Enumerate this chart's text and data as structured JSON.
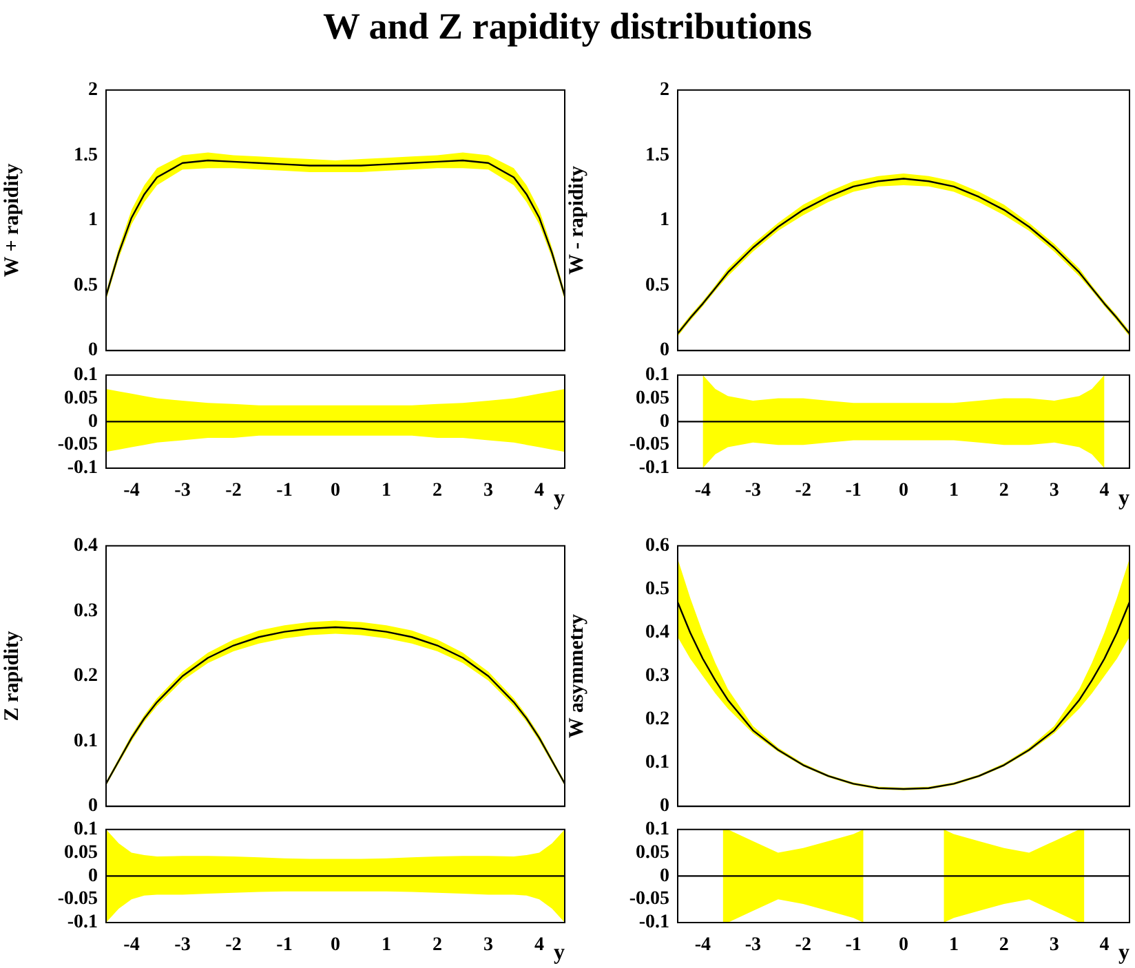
{
  "chart_data": [
    {
      "type": "line",
      "title": "W and Z rapidity distributions",
      "ylabel": "W + rapidity",
      "xlim": [
        -4.5,
        4.5
      ],
      "xticks": [
        -4,
        -3,
        -2,
        -1,
        0,
        1,
        2,
        3,
        4
      ],
      "ylim": [
        0,
        2
      ],
      "yticks": [
        0,
        0.5,
        1,
        1.5,
        2
      ],
      "tick_labels": "y",
      "x": [
        -4.5,
        -4.25,
        -4,
        -3.75,
        -3.5,
        -3,
        -2.5,
        -2,
        -1.5,
        -1,
        -0.5,
        0,
        0.5,
        1,
        1.5,
        2,
        2.5,
        3,
        3.5,
        3.75,
        4,
        4.25,
        4.5
      ],
      "series": [
        {
          "color": "#000000",
          "values": [
            0.42,
            0.75,
            1.02,
            1.2,
            1.33,
            1.44,
            1.46,
            1.45,
            1.44,
            1.43,
            1.42,
            1.42,
            1.42,
            1.43,
            1.44,
            1.45,
            1.46,
            1.44,
            1.33,
            1.2,
            1.02,
            0.75,
            0.42
          ],
          "lower": [
            0.39,
            0.71,
            0.97,
            1.14,
            1.27,
            1.39,
            1.4,
            1.4,
            1.39,
            1.38,
            1.37,
            1.37,
            1.37,
            1.38,
            1.39,
            1.4,
            1.4,
            1.39,
            1.27,
            1.14,
            0.97,
            0.71,
            0.39
          ],
          "upper": [
            0.45,
            0.79,
            1.08,
            1.27,
            1.4,
            1.5,
            1.52,
            1.5,
            1.49,
            1.48,
            1.47,
            1.46,
            1.47,
            1.48,
            1.49,
            1.5,
            1.52,
            1.5,
            1.4,
            1.27,
            1.08,
            0.79,
            0.45
          ]
        }
      ]
    },
    {
      "type": "line",
      "xlabel": "y",
      "xlim": [
        -4.5,
        4.5
      ],
      "xticks": [
        -4,
        -3,
        -2,
        -1,
        0,
        1,
        2,
        3,
        4
      ],
      "ylim": [
        -0.1,
        0.1
      ],
      "yticks": [
        -0.1,
        -0.05,
        0,
        0.05,
        0.1
      ],
      "x": [
        -4.5,
        -4.25,
        -4,
        -3.75,
        -3.5,
        -3,
        -2.5,
        -2,
        -1.5,
        -1,
        -0.5,
        0,
        0.5,
        1,
        1.5,
        2,
        2.5,
        3,
        3.5,
        3.75,
        4,
        4.25,
        4.5
      ],
      "series": [
        {
          "color": "#000000",
          "values": [
            0,
            0,
            0,
            0,
            0,
            0,
            0,
            0,
            0,
            0,
            0,
            0,
            0,
            0,
            0,
            0,
            0,
            0,
            0,
            0,
            0,
            0,
            0
          ],
          "lower": [
            -0.065,
            -0.06,
            -0.055,
            -0.05,
            -0.045,
            -0.04,
            -0.035,
            -0.035,
            -0.03,
            -0.03,
            -0.03,
            -0.03,
            -0.03,
            -0.03,
            -0.03,
            -0.035,
            -0.035,
            -0.04,
            -0.045,
            -0.05,
            -0.055,
            -0.06,
            -0.065
          ],
          "upper": [
            0.07,
            0.065,
            0.06,
            0.055,
            0.05,
            0.045,
            0.04,
            0.038,
            0.035,
            0.035,
            0.035,
            0.035,
            0.035,
            0.035,
            0.035,
            0.038,
            0.04,
            0.045,
            0.05,
            0.055,
            0.06,
            0.065,
            0.07
          ]
        }
      ]
    },
    {
      "type": "line",
      "ylabel": "W - rapidity",
      "xlim": [
        -4.5,
        4.5
      ],
      "xticks": [
        -4,
        -3,
        -2,
        -1,
        0,
        1,
        2,
        3,
        4
      ],
      "ylim": [
        0,
        2
      ],
      "yticks": [
        0,
        0.5,
        1,
        1.5,
        2
      ],
      "tick_labels": "y",
      "x": [
        -4.5,
        -4.25,
        -4,
        -3.75,
        -3.5,
        -3,
        -2.5,
        -2,
        -1.5,
        -1,
        -0.5,
        0,
        0.5,
        1,
        1.5,
        2,
        2.5,
        3,
        3.5,
        3.75,
        4,
        4.25,
        4.5
      ],
      "series": [
        {
          "color": "#000000",
          "values": [
            0.13,
            0.25,
            0.36,
            0.48,
            0.6,
            0.79,
            0.95,
            1.08,
            1.18,
            1.26,
            1.3,
            1.32,
            1.3,
            1.26,
            1.18,
            1.08,
            0.95,
            0.79,
            0.6,
            0.48,
            0.36,
            0.25,
            0.13
          ],
          "lower": [
            0.11,
            0.23,
            0.34,
            0.46,
            0.57,
            0.76,
            0.92,
            1.04,
            1.14,
            1.22,
            1.26,
            1.27,
            1.26,
            1.22,
            1.14,
            1.04,
            0.92,
            0.76,
            0.57,
            0.46,
            0.34,
            0.23,
            0.11
          ],
          "upper": [
            0.15,
            0.27,
            0.38,
            0.5,
            0.63,
            0.82,
            0.98,
            1.12,
            1.22,
            1.3,
            1.34,
            1.36,
            1.34,
            1.3,
            1.22,
            1.12,
            0.98,
            0.82,
            0.63,
            0.5,
            0.38,
            0.27,
            0.15
          ]
        }
      ]
    },
    {
      "type": "line",
      "xlabel": "y",
      "xlim": [
        -4.5,
        4.5
      ],
      "xticks": [
        -4,
        -3,
        -2,
        -1,
        0,
        1,
        2,
        3,
        4
      ],
      "ylim": [
        -0.1,
        0.1
      ],
      "yticks": [
        -0.1,
        -0.05,
        0,
        0.05,
        0.1
      ],
      "x": [
        -4.5,
        -4.25,
        -4,
        -3.75,
        -3.5,
        -3,
        -2.5,
        -2,
        -1.5,
        -1,
        -0.5,
        0,
        0.5,
        1,
        1.5,
        2,
        2.5,
        3,
        3.5,
        3.75,
        4,
        4.25,
        4.5
      ],
      "series": [
        {
          "color": "#000000",
          "values": [
            0,
            0,
            0,
            0,
            0,
            0,
            0,
            0,
            0,
            0,
            0,
            0,
            0,
            0,
            0,
            0,
            0,
            0,
            0,
            0,
            0,
            0,
            0
          ],
          "lower": [
            null,
            null,
            -0.1,
            -0.07,
            -0.055,
            -0.045,
            -0.05,
            -0.05,
            -0.045,
            -0.04,
            -0.04,
            -0.04,
            -0.04,
            -0.04,
            -0.045,
            -0.05,
            -0.05,
            -0.045,
            -0.055,
            -0.07,
            -0.1,
            null,
            null
          ],
          "upper": [
            null,
            null,
            0.1,
            0.07,
            0.055,
            0.045,
            0.05,
            0.05,
            0.045,
            0.04,
            0.04,
            0.04,
            0.04,
            0.04,
            0.045,
            0.05,
            0.05,
            0.045,
            0.055,
            0.07,
            0.1,
            null,
            null
          ]
        }
      ]
    },
    {
      "type": "line",
      "ylabel": "Z rapidity",
      "xlim": [
        -4.5,
        4.5
      ],
      "xticks": [
        -4,
        -3,
        -2,
        -1,
        0,
        1,
        2,
        3,
        4
      ],
      "ylim": [
        0,
        0.4
      ],
      "yticks": [
        0,
        0.1,
        0.2,
        0.3,
        0.4
      ],
      "tick_labels": "y",
      "x": [
        -4.5,
        -4.25,
        -4,
        -3.75,
        -3.5,
        -3,
        -2.5,
        -2,
        -1.5,
        -1,
        -0.5,
        0,
        0.5,
        1,
        1.5,
        2,
        2.5,
        3,
        3.5,
        3.75,
        4,
        4.25,
        4.5
      ],
      "series": [
        {
          "color": "#000000",
          "values": [
            0.035,
            0.07,
            0.105,
            0.135,
            0.16,
            0.2,
            0.228,
            0.247,
            0.26,
            0.268,
            0.273,
            0.275,
            0.273,
            0.268,
            0.26,
            0.247,
            0.228,
            0.2,
            0.16,
            0.135,
            0.105,
            0.07,
            0.035
          ],
          "lower": [
            0.032,
            0.066,
            0.1,
            0.13,
            0.154,
            0.193,
            0.22,
            0.238,
            0.25,
            0.258,
            0.263,
            0.265,
            0.263,
            0.258,
            0.25,
            0.238,
            0.22,
            0.193,
            0.154,
            0.13,
            0.1,
            0.066,
            0.032
          ],
          "upper": [
            0.038,
            0.074,
            0.11,
            0.14,
            0.166,
            0.207,
            0.236,
            0.256,
            0.27,
            0.278,
            0.283,
            0.285,
            0.283,
            0.278,
            0.27,
            0.256,
            0.236,
            0.207,
            0.166,
            0.14,
            0.11,
            0.074,
            0.038
          ]
        }
      ]
    },
    {
      "type": "line",
      "xlabel": "y",
      "xlim": [
        -4.5,
        4.5
      ],
      "xticks": [
        -4,
        -3,
        -2,
        -1,
        0,
        1,
        2,
        3,
        4
      ],
      "ylim": [
        -0.1,
        0.1
      ],
      "yticks": [
        -0.1,
        -0.05,
        0,
        0.05,
        0.1
      ],
      "x": [
        -4.5,
        -4.25,
        -4,
        -3.75,
        -3.5,
        -3,
        -2.5,
        -2,
        -1.5,
        -1,
        -0.5,
        0,
        0.5,
        1,
        1.5,
        2,
        2.5,
        3,
        3.5,
        3.75,
        4,
        4.25,
        4.5
      ],
      "series": [
        {
          "color": "#000000",
          "values": [
            0,
            0,
            0,
            0,
            0,
            0,
            0,
            0,
            0,
            0,
            0,
            0,
            0,
            0,
            0,
            0,
            0,
            0,
            0,
            0,
            0,
            0,
            0
          ],
          "lower": [
            -0.1,
            -0.07,
            -0.05,
            -0.042,
            -0.04,
            -0.04,
            -0.038,
            -0.036,
            -0.034,
            -0.033,
            -0.033,
            -0.033,
            -0.033,
            -0.033,
            -0.034,
            -0.036,
            -0.038,
            -0.04,
            -0.04,
            -0.042,
            -0.05,
            -0.07,
            -0.1
          ],
          "upper": [
            0.1,
            0.07,
            0.05,
            0.045,
            0.042,
            0.043,
            0.043,
            0.042,
            0.04,
            0.038,
            0.037,
            0.037,
            0.037,
            0.038,
            0.04,
            0.042,
            0.043,
            0.043,
            0.042,
            0.045,
            0.05,
            0.07,
            0.1
          ]
        }
      ]
    },
    {
      "type": "line",
      "ylabel": "W asymmetry",
      "xlim": [
        -4.5,
        4.5
      ],
      "xticks": [
        -4,
        -3,
        -2,
        -1,
        0,
        1,
        2,
        3,
        4
      ],
      "ylim": [
        0,
        0.6
      ],
      "yticks": [
        0,
        0.1,
        0.2,
        0.3,
        0.4,
        0.5,
        0.6
      ],
      "tick_labels": "y",
      "x": [
        -4.5,
        -4.25,
        -4,
        -3.75,
        -3.5,
        -3,
        -2.5,
        -2,
        -1.5,
        -1,
        -0.5,
        0,
        0.5,
        1,
        1.5,
        2,
        2.5,
        3,
        3.5,
        3.75,
        4,
        4.25,
        4.5
      ],
      "series": [
        {
          "color": "#000000",
          "values": [
            0.47,
            0.4,
            0.34,
            0.29,
            0.245,
            0.175,
            0.13,
            0.095,
            0.07,
            0.052,
            0.042,
            0.04,
            0.042,
            0.052,
            0.07,
            0.095,
            0.13,
            0.175,
            0.245,
            0.29,
            0.34,
            0.4,
            0.47
          ],
          "lower": [
            0.39,
            0.34,
            0.3,
            0.26,
            0.225,
            0.168,
            0.126,
            0.092,
            0.067,
            0.049,
            0.039,
            0.037,
            0.039,
            0.049,
            0.067,
            0.092,
            0.126,
            0.168,
            0.225,
            0.26,
            0.3,
            0.34,
            0.39
          ],
          "upper": [
            0.57,
            0.48,
            0.4,
            0.33,
            0.27,
            0.185,
            0.135,
            0.099,
            0.073,
            0.055,
            0.045,
            0.043,
            0.045,
            0.055,
            0.073,
            0.099,
            0.135,
            0.185,
            0.27,
            0.33,
            0.4,
            0.48,
            0.57
          ]
        }
      ]
    },
    {
      "type": "line",
      "xlabel": "y",
      "xlim": [
        -4.5,
        4.5
      ],
      "xticks": [
        -4,
        -3,
        -2,
        -1,
        0,
        1,
        2,
        3,
        4
      ],
      "ylim": [
        -0.1,
        0.1
      ],
      "yticks": [
        -0.1,
        -0.05,
        0,
        0.05,
        0.1
      ],
      "x": [
        -4.5,
        -4,
        -3.6,
        -3.5,
        -3,
        -2.5,
        -2,
        -1.5,
        -1,
        -0.8,
        -0.5,
        0,
        0.5,
        0.8,
        1,
        1.5,
        2,
        2.5,
        3,
        3.5,
        3.6,
        4,
        4.5
      ],
      "series": [
        {
          "color": "#000000",
          "values": [
            0,
            0,
            0,
            0,
            0,
            0,
            0,
            0,
            0,
            0,
            0,
            0,
            0,
            0,
            0,
            0,
            0,
            0,
            0,
            0,
            0,
            0,
            0
          ],
          "lower": [
            null,
            null,
            -0.1,
            -0.1,
            -0.075,
            -0.05,
            -0.06,
            -0.075,
            -0.09,
            -0.1,
            null,
            null,
            null,
            -0.1,
            -0.09,
            -0.075,
            -0.06,
            -0.05,
            -0.075,
            -0.1,
            -0.1,
            null,
            null
          ],
          "upper": [
            null,
            null,
            0.1,
            0.1,
            0.075,
            0.05,
            0.06,
            0.075,
            0.09,
            0.1,
            null,
            null,
            null,
            0.1,
            0.09,
            0.075,
            0.06,
            0.05,
            0.075,
            0.1,
            0.1,
            null,
            null
          ]
        }
      ]
    }
  ]
}
